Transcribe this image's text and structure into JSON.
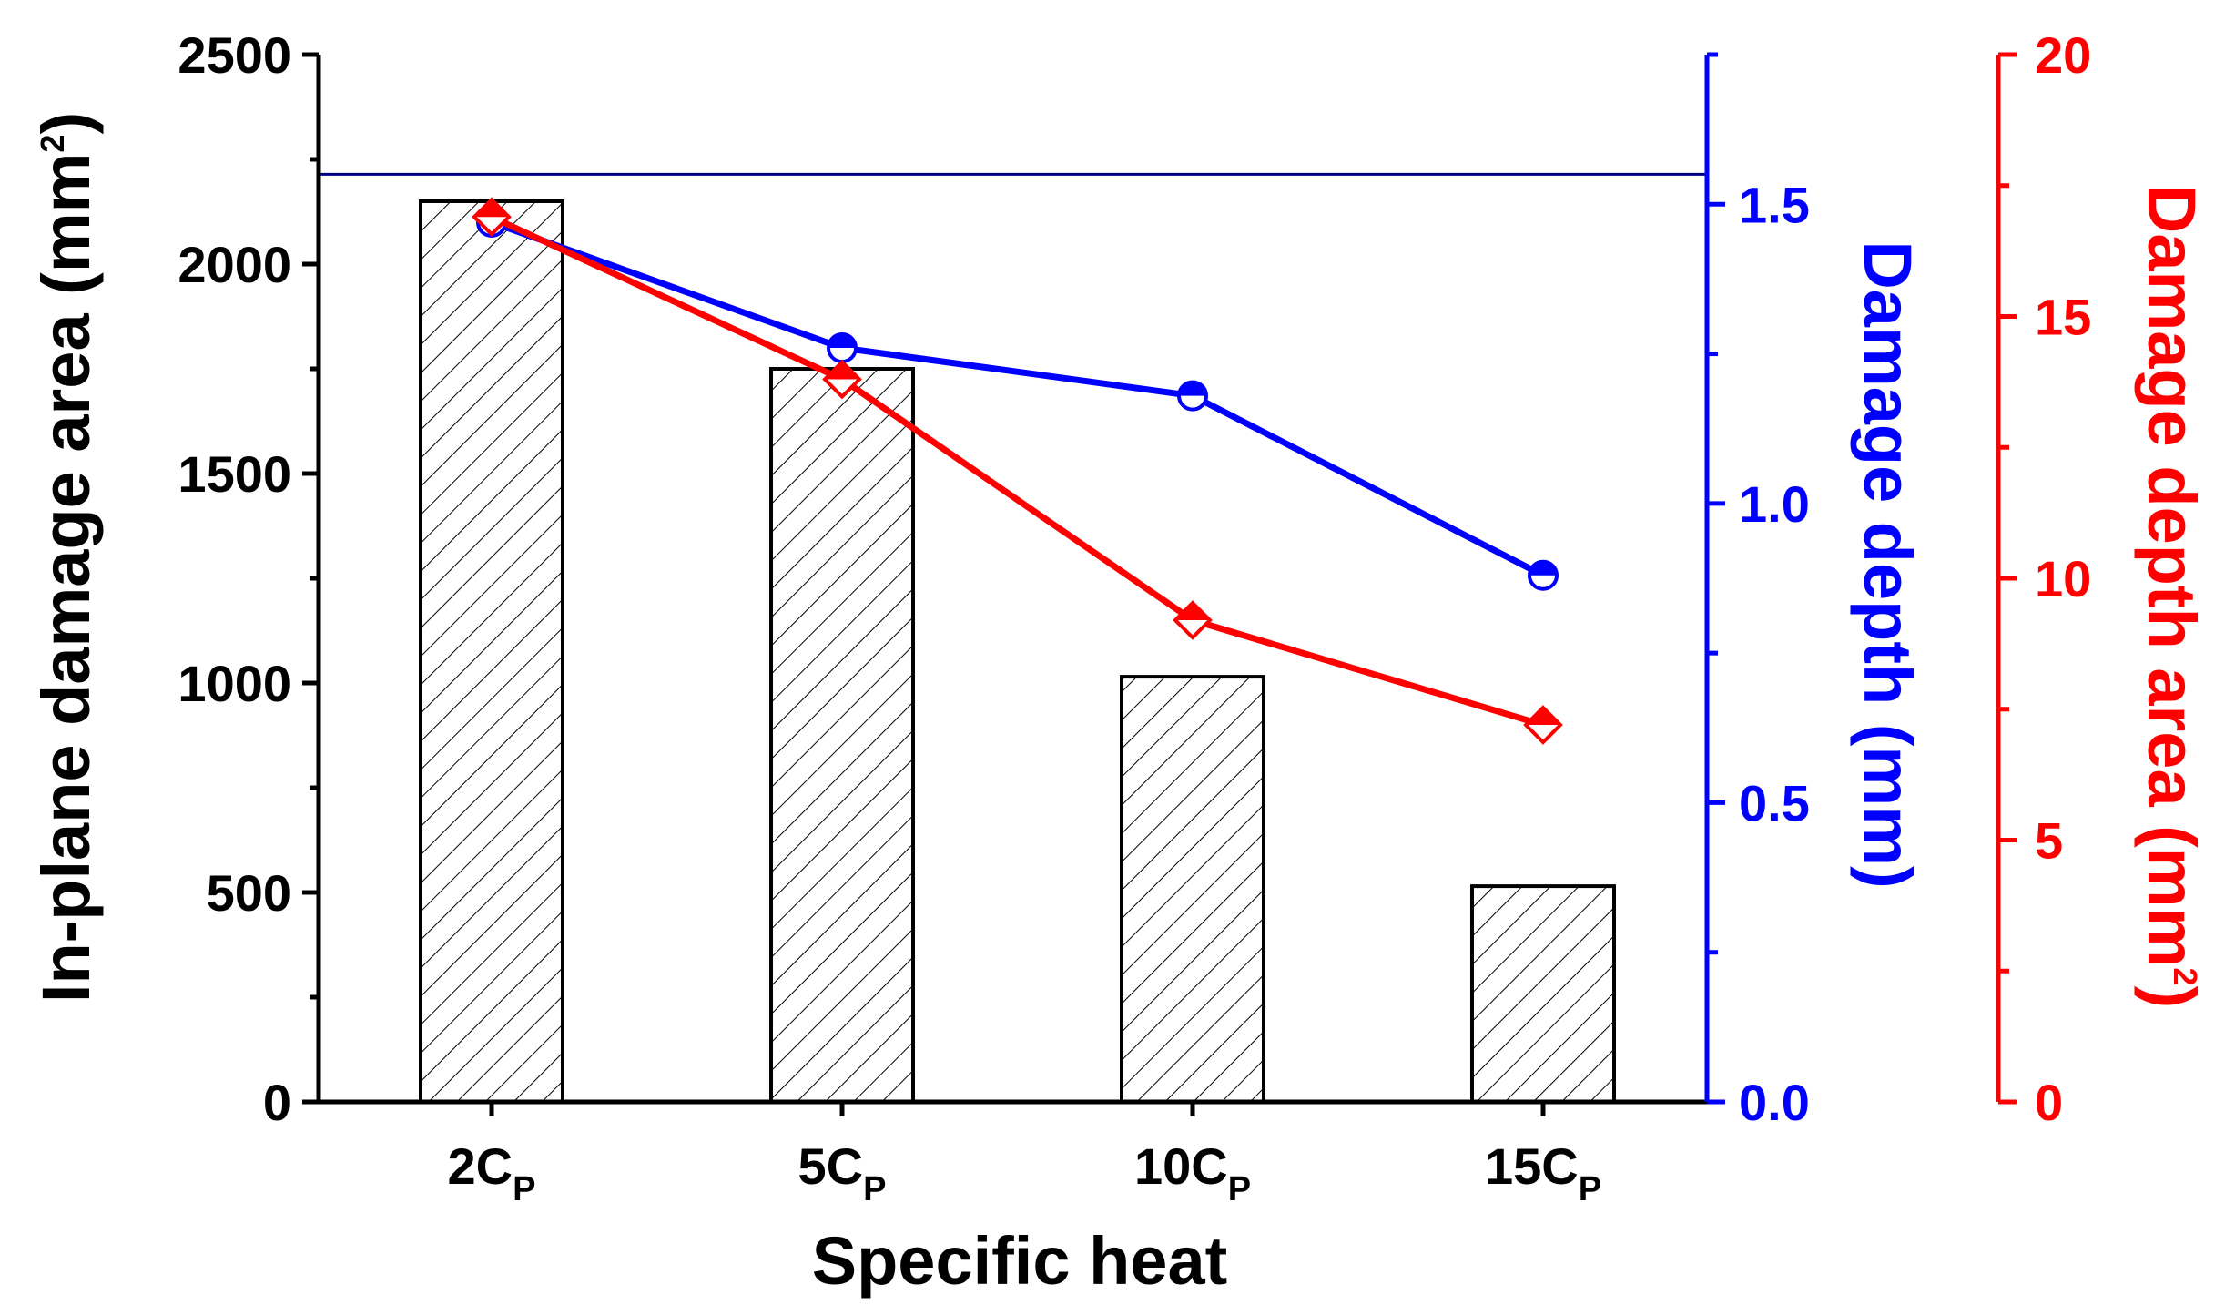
{
  "chart_data": {
    "type": "bar",
    "xlabel": "Specific heat",
    "categories": [
      {
        "base": "2C",
        "sub": "P"
      },
      {
        "base": "5C",
        "sub": "P"
      },
      {
        "base": "10C",
        "sub": "P"
      },
      {
        "base": "15C",
        "sub": "P"
      }
    ],
    "bars": {
      "name": "In-plane damage area",
      "values": [
        2150,
        1750,
        1015,
        515
      ]
    },
    "line_depth": {
      "name": "Damage depth",
      "color": "#0000ff",
      "values": [
        1.47,
        1.26,
        1.18,
        0.88
      ]
    },
    "line_depth_area": {
      "name": "Damage depth area",
      "color": "#ff0000",
      "values": [
        16.9,
        13.8,
        9.2,
        7.2
      ]
    },
    "reference_line": {
      "axis": "depth",
      "value": 1.55,
      "color": "#000080"
    },
    "y_left": {
      "label_main": "In-plane damage area (mm",
      "label_sup": "2",
      "label_end": ")",
      "ylim": [
        0,
        2500
      ],
      "ticks": [
        "0",
        "500",
        "1000",
        "1500",
        "2000",
        "2500"
      ],
      "color": "#000000"
    },
    "y_right1": {
      "label": "Damage depth (mm)",
      "ylim": [
        0.0,
        1.75
      ],
      "ticks": [
        "0.0",
        "0.5",
        "1.0",
        "1.5"
      ],
      "color": "#0000ff"
    },
    "y_right2": {
      "label_main": "Damage depth area (mm",
      "label_sup": "2",
      "label_end": ")",
      "ylim": [
        0,
        20
      ],
      "ticks": [
        "0",
        "5",
        "10",
        "15",
        "20"
      ],
      "color": "#ff0000"
    }
  }
}
